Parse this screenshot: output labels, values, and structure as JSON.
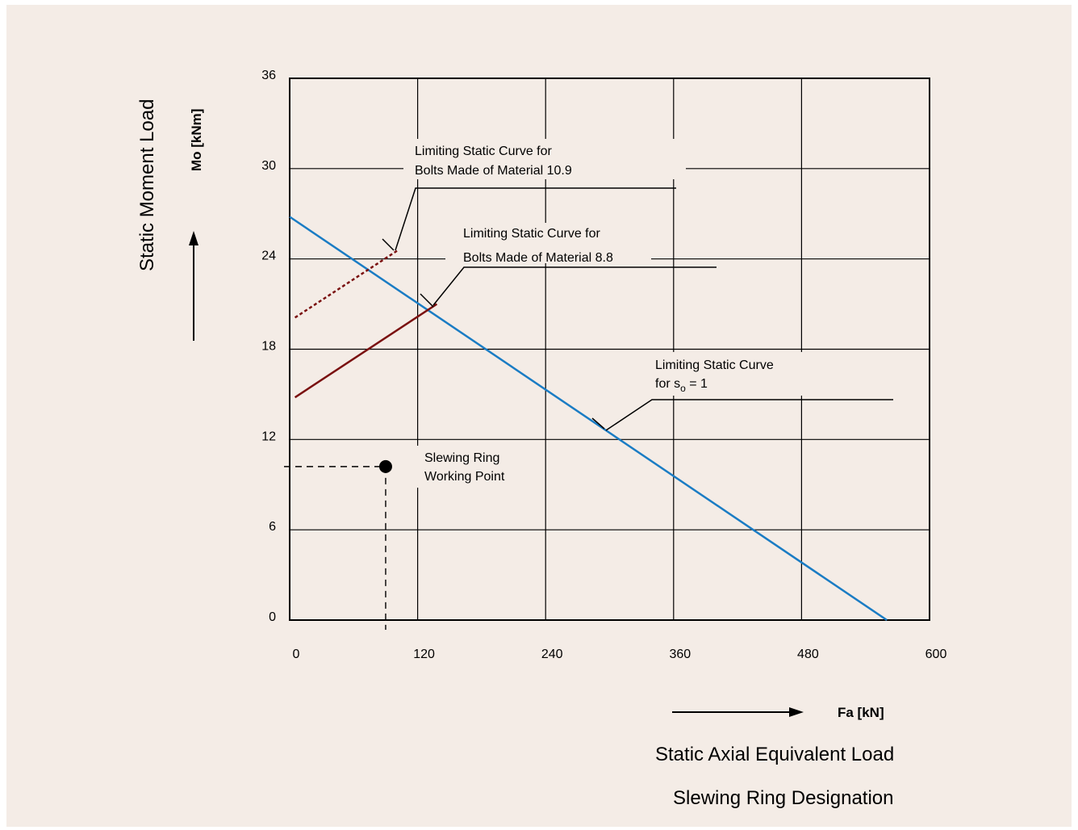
{
  "chart_data": {
    "type": "line",
    "ylabel": "Static Moment Load",
    "yunit": "Mo [kNm]",
    "xlabel": "Static Axial Equivalent Load",
    "xunit": "Fa [kN]",
    "subtitle": "Slewing Ring Designation",
    "xlim": [
      0,
      600
    ],
    "ylim": [
      0,
      36
    ],
    "xticks": [
      0,
      120,
      240,
      360,
      480,
      600
    ],
    "yticks": [
      0,
      6,
      12,
      18,
      24,
      30,
      36
    ],
    "grid": true,
    "series": [
      {
        "name": "Limiting Static Curve for s₀ = 1",
        "color": "#1a7cc4",
        "style": "solid",
        "x": [
          0,
          560
        ],
        "y": [
          26.8,
          0
        ]
      },
      {
        "name": "Limiting Static Curve for Bolts Made of Material 8.8",
        "color": "#7a1010",
        "style": "solid",
        "x": [
          5,
          138
        ],
        "y": [
          14.8,
          21.0
        ]
      },
      {
        "name": "Limiting Static Curve for Bolts Made of Material 10.9",
        "color": "#7a1010",
        "style": "dotted",
        "x": [
          5,
          102
        ],
        "y": [
          20.1,
          24.6
        ]
      }
    ],
    "point": {
      "x": 90,
      "y": 10.2
    }
  },
  "annotations": {
    "curve_109_line1": "Limiting Static Curve for",
    "curve_109_line2": "Bolts Made of Material 10.9",
    "curve_88_line1": "Limiting Static Curve for",
    "curve_88_line2": "Bolts Made of Material 8.8",
    "curve_so_line1": "Limiting Static Curve",
    "curve_so_line2_prefix": "for s",
    "curve_so_line2_sub": "o",
    "curve_so_line2_suffix": " = 1",
    "working_point_line1": "Slewing Ring",
    "working_point_line2": "Working Point"
  },
  "colors": {
    "background": "#f4ece6",
    "blue": "#1a7cc4",
    "maroon": "#7a1010"
  }
}
